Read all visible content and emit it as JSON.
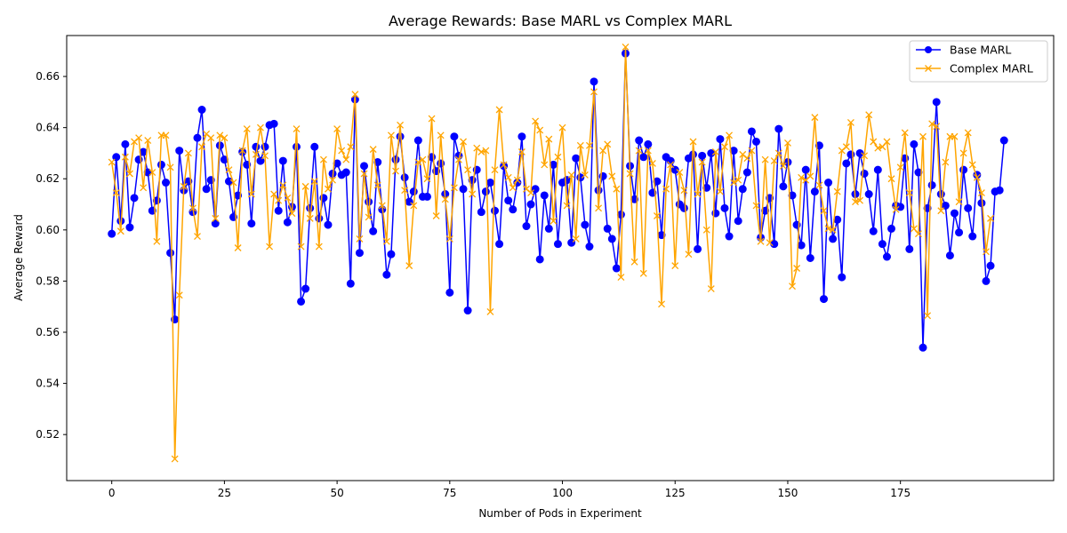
{
  "chart_data": {
    "type": "line",
    "title": "Average Rewards: Base MARL vs Complex MARL",
    "xlabel": "Number of Pods in Experiment",
    "ylabel": "Average Reward",
    "xlim": [
      -10,
      209
    ],
    "ylim": [
      0.502,
      0.676
    ],
    "xticks": [
      0,
      25,
      50,
      75,
      100,
      125,
      150,
      175
    ],
    "yticks": [
      0.52,
      0.54,
      0.56,
      0.58,
      0.6,
      0.62,
      0.64,
      0.66
    ],
    "grid": false,
    "legend_position": "top-right",
    "series": [
      {
        "name": "Base MARL",
        "color": "#0000ff",
        "marker": "circle",
        "values": [
          0.5985,
          0.6285,
          0.6035,
          0.6335,
          0.601,
          0.6125,
          0.6275,
          0.6305,
          0.6225,
          0.6075,
          0.6115,
          0.6255,
          0.6185,
          0.591,
          0.565,
          0.631,
          0.6155,
          0.619,
          0.607,
          0.636,
          0.647,
          0.616,
          0.6195,
          0.6025,
          0.633,
          0.6275,
          0.619,
          0.605,
          0.6135,
          0.6305,
          0.6255,
          0.6025,
          0.6325,
          0.627,
          0.6325,
          0.641,
          0.6415,
          0.6075,
          0.627,
          0.603,
          0.609,
          0.6325,
          0.572,
          0.577,
          0.6085,
          0.6325,
          0.6045,
          0.6125,
          0.602,
          0.622,
          0.626,
          0.6215,
          0.6225,
          0.579,
          0.651,
          0.591,
          0.625,
          0.611,
          0.5995,
          0.6265,
          0.608,
          0.5825,
          0.5905,
          0.6275,
          0.6365,
          0.6205,
          0.611,
          0.615,
          0.635,
          0.613,
          0.613,
          0.6285,
          0.623,
          0.626,
          0.614,
          0.5755,
          0.6365,
          0.629,
          0.616,
          0.5685,
          0.6195,
          0.6235,
          0.607,
          0.615,
          0.6185,
          0.6075,
          0.5945,
          0.625,
          0.6115,
          0.608,
          0.6185,
          0.6365,
          0.6015,
          0.61,
          0.616,
          0.5885,
          0.6135,
          0.6005,
          0.6255,
          0.5945,
          0.6185,
          0.6195,
          0.595,
          0.628,
          0.6205,
          0.602,
          0.5935,
          0.658,
          0.6155,
          0.621,
          0.6005,
          0.5965,
          0.585,
          0.606,
          0.669,
          0.625,
          0.612,
          0.635,
          0.6285,
          0.6335,
          0.6145,
          0.619,
          0.598,
          0.6285,
          0.627,
          0.6235,
          0.61,
          0.6085,
          0.628,
          0.6295,
          0.5925,
          0.629,
          0.6165,
          0.63,
          0.6065,
          0.6355,
          0.6085,
          0.5975,
          0.631,
          0.6035,
          0.616,
          0.6225,
          0.6385,
          0.6345,
          0.597,
          0.6075,
          0.6125,
          0.5945,
          0.6395,
          0.617,
          0.6265,
          0.6135,
          0.602,
          0.594,
          0.6235,
          0.589,
          0.615,
          0.633,
          0.573,
          0.6185,
          0.5965,
          0.604,
          0.5815,
          0.626,
          0.6295,
          0.614,
          0.63,
          0.622,
          0.614,
          0.5995,
          0.6235,
          0.5945,
          0.5895,
          0.6005,
          0.6095,
          0.609,
          0.628,
          0.5925,
          0.6335,
          0.6225,
          0.554,
          0.6085,
          0.6175,
          0.65,
          0.614,
          0.6095,
          0.59,
          0.6065,
          0.599,
          0.6235,
          0.6085,
          0.5975,
          0.6215,
          0.6105,
          0.58,
          0.586,
          0.615,
          0.6155,
          0.635
        ]
      },
      {
        "name": "Complex MARL",
        "color": "#ffa500",
        "marker": "x",
        "values": [
          0.6265,
          0.6145,
          0.5995,
          0.6285,
          0.622,
          0.6345,
          0.636,
          0.6165,
          0.635,
          0.6225,
          0.5955,
          0.637,
          0.637,
          0.6245,
          0.5105,
          0.5745,
          0.617,
          0.63,
          0.6085,
          0.5975,
          0.6325,
          0.6375,
          0.636,
          0.6045,
          0.637,
          0.636,
          0.6235,
          0.6185,
          0.593,
          0.631,
          0.6395,
          0.614,
          0.6295,
          0.64,
          0.629,
          0.5935,
          0.614,
          0.6115,
          0.6175,
          0.6125,
          0.6065,
          0.6395,
          0.5935,
          0.617,
          0.6045,
          0.619,
          0.5935,
          0.6275,
          0.616,
          0.6195,
          0.6395,
          0.631,
          0.6275,
          0.6325,
          0.653,
          0.5965,
          0.622,
          0.605,
          0.6315,
          0.6175,
          0.6095,
          0.5955,
          0.637,
          0.623,
          0.641,
          0.6155,
          0.586,
          0.6095,
          0.6265,
          0.6275,
          0.62,
          0.6435,
          0.6055,
          0.637,
          0.612,
          0.5965,
          0.6165,
          0.6275,
          0.6345,
          0.6235,
          0.614,
          0.632,
          0.6305,
          0.631,
          0.568,
          0.6235,
          0.647,
          0.6255,
          0.6205,
          0.6165,
          0.6195,
          0.6305,
          0.616,
          0.6145,
          0.6425,
          0.639,
          0.6255,
          0.6355,
          0.6035,
          0.6285,
          0.64,
          0.6095,
          0.6215,
          0.5965,
          0.633,
          0.6215,
          0.633,
          0.654,
          0.6085,
          0.631,
          0.6335,
          0.621,
          0.616,
          0.5815,
          0.6715,
          0.622,
          0.5875,
          0.631,
          0.583,
          0.631,
          0.626,
          0.6055,
          0.571,
          0.616,
          0.6255,
          0.586,
          0.6225,
          0.6155,
          0.5905,
          0.6345,
          0.614,
          0.6265,
          0.6,
          0.577,
          0.6305,
          0.615,
          0.6325,
          0.637,
          0.6185,
          0.6195,
          0.6295,
          0.628,
          0.631,
          0.6095,
          0.5955,
          0.6275,
          0.595,
          0.627,
          0.63,
          0.625,
          0.634,
          0.578,
          0.585,
          0.6205,
          0.6195,
          0.621,
          0.644,
          0.6175,
          0.6075,
          0.6005,
          0.6,
          0.615,
          0.631,
          0.6325,
          0.642,
          0.611,
          0.6115,
          0.629,
          0.645,
          0.6345,
          0.632,
          0.6325,
          0.6345,
          0.62,
          0.608,
          0.6245,
          0.638,
          0.6145,
          0.6005,
          0.5985,
          0.6365,
          0.5665,
          0.6415,
          0.6405,
          0.6075,
          0.6265,
          0.6365,
          0.6365,
          0.611,
          0.63,
          0.638,
          0.6255,
          0.6205,
          0.6145,
          0.5915,
          0.6045
        ]
      }
    ]
  }
}
